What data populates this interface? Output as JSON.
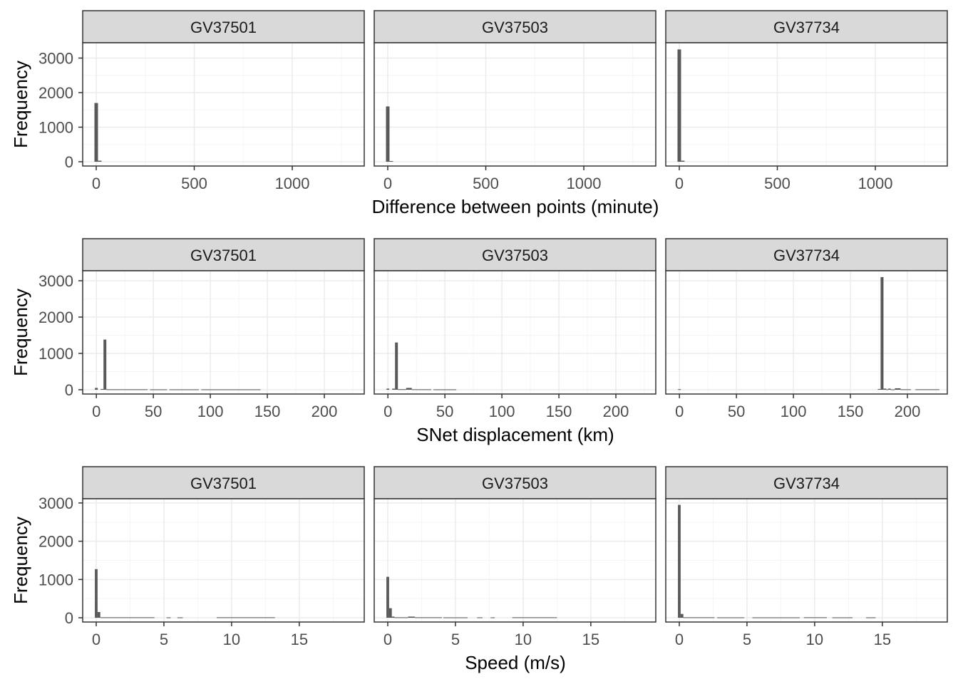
{
  "chart_data": [
    {
      "type": "bar",
      "title": "",
      "xlabel": "Difference between points (minute)",
      "ylabel": "Frequency",
      "xlim": [
        -69,
        1367
      ],
      "ylim": [
        -124,
        3443
      ],
      "x_ticks": [
        0,
        500,
        1000
      ],
      "x_minor": [
        250,
        750,
        1250
      ],
      "y_ticks": [
        0,
        1000,
        2000,
        3000
      ],
      "grid": true,
      "panels": [
        {
          "strip": "GV37501",
          "bins": [
            [
              -9,
              9,
              1700
            ],
            [
              9,
              27,
              30
            ]
          ]
        },
        {
          "strip": "GV37503",
          "bins": [
            [
              -9,
              9,
              1600
            ],
            [
              9,
              27,
              20
            ]
          ]
        },
        {
          "strip": "GV37734",
          "bins": [
            [
              -9,
              9,
              3250
            ],
            [
              9,
              27,
              30
            ]
          ]
        }
      ]
    },
    {
      "type": "bar",
      "title": "",
      "xlabel": "SNet displacement (km)",
      "ylabel": "Frequency",
      "xlim": [
        -12,
        235
      ],
      "ylim": [
        -118,
        3275
      ],
      "x_ticks": [
        0,
        50,
        100,
        150,
        200
      ],
      "x_minor": [
        25,
        75,
        125,
        175,
        225
      ],
      "y_ticks": [
        0,
        1000,
        2000,
        3000
      ],
      "grid": true,
      "panels": [
        {
          "strip": "GV37501",
          "bins": [
            [
              -1.25,
              1.25,
              50
            ],
            [
              3.75,
              6.25,
              20
            ],
            [
              6.25,
              8.75,
              1380
            ],
            [
              8.75,
              45,
              12
            ],
            [
              47,
              62,
              10
            ],
            [
              64,
              90,
              10
            ],
            [
              92,
              144,
              10
            ]
          ]
        },
        {
          "strip": "GV37503",
          "bins": [
            [
              -1.25,
              1.25,
              30
            ],
            [
              3.75,
              6.25,
              30
            ],
            [
              6.25,
              8.75,
              1300
            ],
            [
              8.75,
              16,
              15
            ],
            [
              16,
              21,
              50
            ],
            [
              21,
              38,
              12
            ],
            [
              40,
              60,
              10
            ]
          ]
        },
        {
          "strip": "GV37734",
          "bins": [
            [
              -1.25,
              1.25,
              15
            ],
            [
              174,
              176.5,
              20
            ],
            [
              176.5,
              179,
              3100
            ],
            [
              179,
              181.5,
              30
            ],
            [
              181.5,
              183,
              10
            ],
            [
              183,
              185.5,
              30
            ],
            [
              185.5,
              189,
              10
            ],
            [
              189,
              194,
              40
            ],
            [
              194,
              203,
              12
            ],
            [
              207,
              228,
              12
            ]
          ]
        }
      ]
    },
    {
      "type": "bar",
      "title": "",
      "xlabel": "Speed (m/s)",
      "ylabel": "Frequency",
      "xlim": [
        -1,
        19.8
      ],
      "ylim": [
        -111,
        3110
      ],
      "x_ticks": [
        0,
        5,
        10,
        15
      ],
      "x_minor": [
        2.5,
        7.5,
        12.5,
        17.5
      ],
      "y_ticks": [
        0,
        1000,
        2000,
        3000
      ],
      "grid": true,
      "panels": [
        {
          "strip": "GV37501",
          "bins": [
            [
              -0.1,
              0.1,
              1270
            ],
            [
              0.1,
              0.3,
              150
            ],
            [
              0.3,
              4.3,
              12
            ],
            [
              5.2,
              5.5,
              10
            ],
            [
              6.0,
              6.4,
              10
            ],
            [
              8.9,
              13.2,
              12
            ]
          ]
        },
        {
          "strip": "GV37503",
          "bins": [
            [
              -0.1,
              0.1,
              1070
            ],
            [
              0.1,
              0.3,
              250
            ],
            [
              0.3,
              0.5,
              30
            ],
            [
              0.5,
              1.5,
              12
            ],
            [
              1.5,
              2.0,
              30
            ],
            [
              2.0,
              4.0,
              12
            ],
            [
              4.1,
              5.9,
              10
            ],
            [
              6.6,
              7.0,
              10
            ],
            [
              7.6,
              7.9,
              10
            ],
            [
              9.2,
              12.5,
              12
            ]
          ]
        },
        {
          "strip": "GV37734",
          "bins": [
            [
              -0.1,
              0.1,
              2950
            ],
            [
              0.1,
              0.3,
              100
            ],
            [
              0.3,
              2.6,
              12
            ],
            [
              2.8,
              4.8,
              10
            ],
            [
              5.4,
              8.9,
              10
            ],
            [
              9.2,
              10.9,
              12
            ],
            [
              11.3,
              12.8,
              10
            ],
            [
              13.8,
              14.5,
              10
            ]
          ]
        }
      ]
    }
  ],
  "colors": {
    "bar": "#595959",
    "strip_fill": "#D9D9D9",
    "border": "#333333",
    "grid_major": "#EBEBEB",
    "grid_minor": "#F5F5F5",
    "text": "#4D4D4D",
    "title": "#000000"
  }
}
